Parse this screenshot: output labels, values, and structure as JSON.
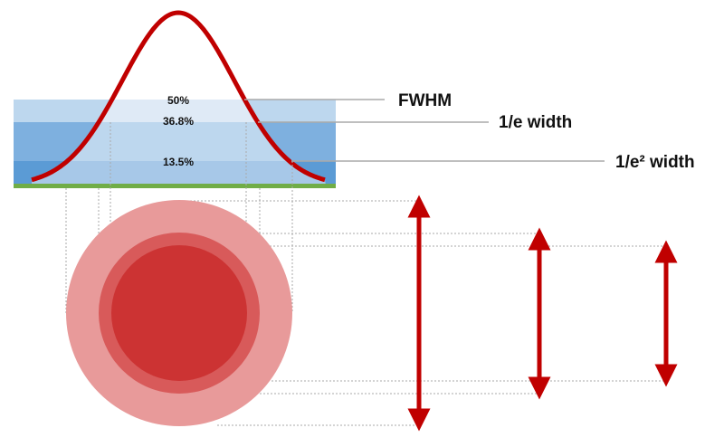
{
  "levels": [
    {
      "label": "50%"
    },
    {
      "label": "36.8%"
    },
    {
      "label": "13.5%"
    }
  ],
  "callouts": [
    {
      "label": "FWHM"
    },
    {
      "label": "1/e width"
    },
    {
      "label": "1/e² width"
    }
  ]
}
